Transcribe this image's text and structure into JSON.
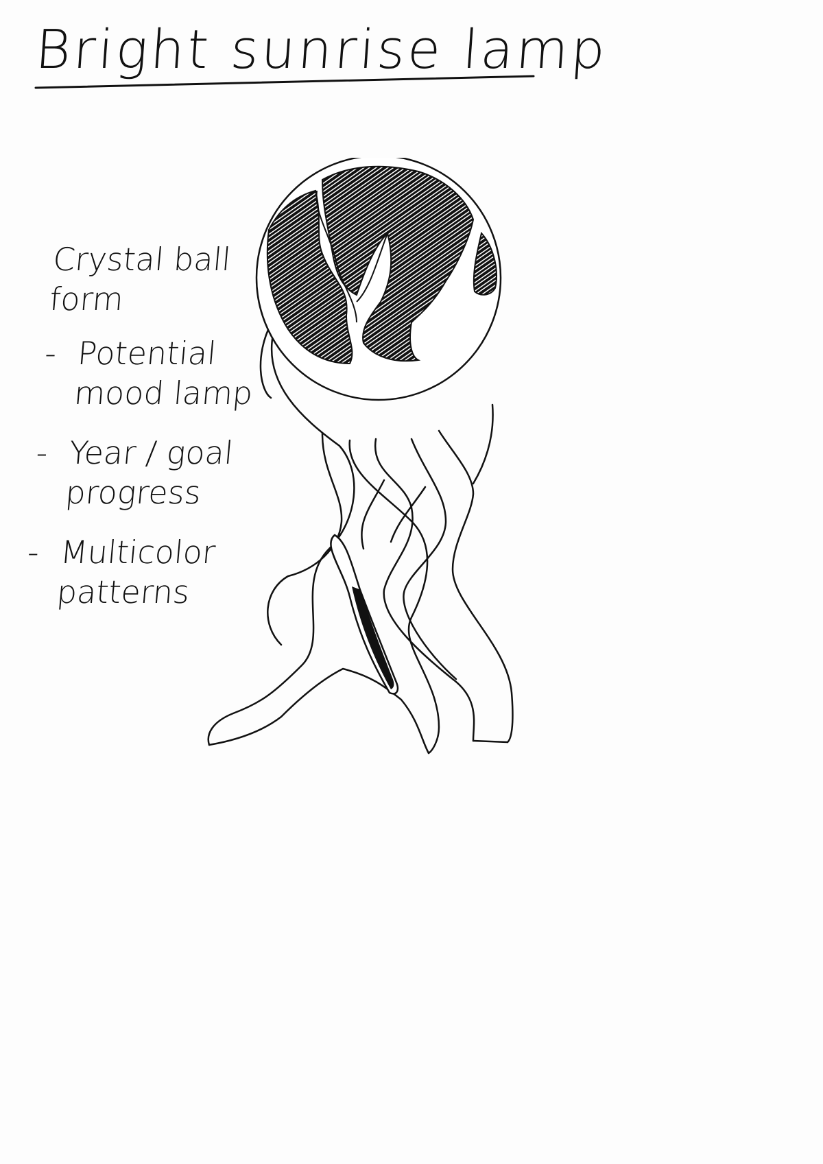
{
  "title": "Bright sunrise lamp",
  "notes": {
    "intro": "Crystal ball form",
    "items": [
      {
        "dash": "-",
        "text": "Potential mood lamp"
      },
      {
        "dash": "-",
        "text": "Year / goal progress"
      },
      {
        "dash": "-",
        "text": "Multicolor patterns"
      }
    ]
  },
  "colors": {
    "ink": "#111111",
    "paper": "#fdfdfd"
  },
  "icons": {
    "lamp": "crystal-ball-lamp-sketch-icon"
  }
}
